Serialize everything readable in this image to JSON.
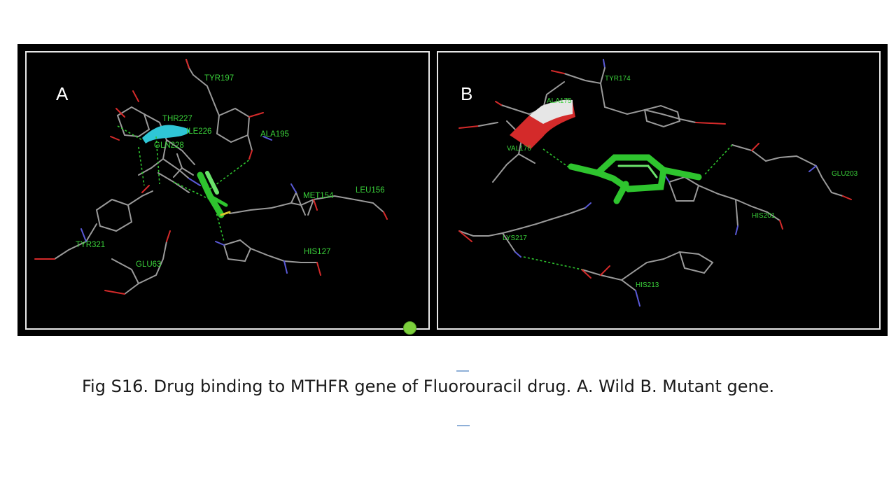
{
  "panels": [
    {
      "letter": "A",
      "residues": [
        "TYR197",
        "THR227",
        "ILE226",
        "GLN228",
        "ALA195",
        "MET154",
        "LEU156",
        "TYR321",
        "GLU63",
        "HIS127"
      ]
    },
    {
      "letter": "B",
      "residues": [
        "TYR174",
        "ALA175",
        "VAL176",
        "GLU203",
        "HIS201",
        "LYS217",
        "HIS213"
      ]
    }
  ],
  "caption": "Fig S16. Drug binding  to MTHFR gene of Fluorouracil  drug. A. Wild B. Mutant gene.",
  "colors": {
    "background": "#ffffff",
    "panel_bg": "#000000",
    "panel_border": "#e8e8e8",
    "ligand": "#2ec42e",
    "label": "#3ad13a",
    "bond": "#9a9a9a",
    "oxygen": "#d42a2a",
    "nitrogen": "#5a5ad8",
    "helix_cyan": "#2fc6d6"
  }
}
